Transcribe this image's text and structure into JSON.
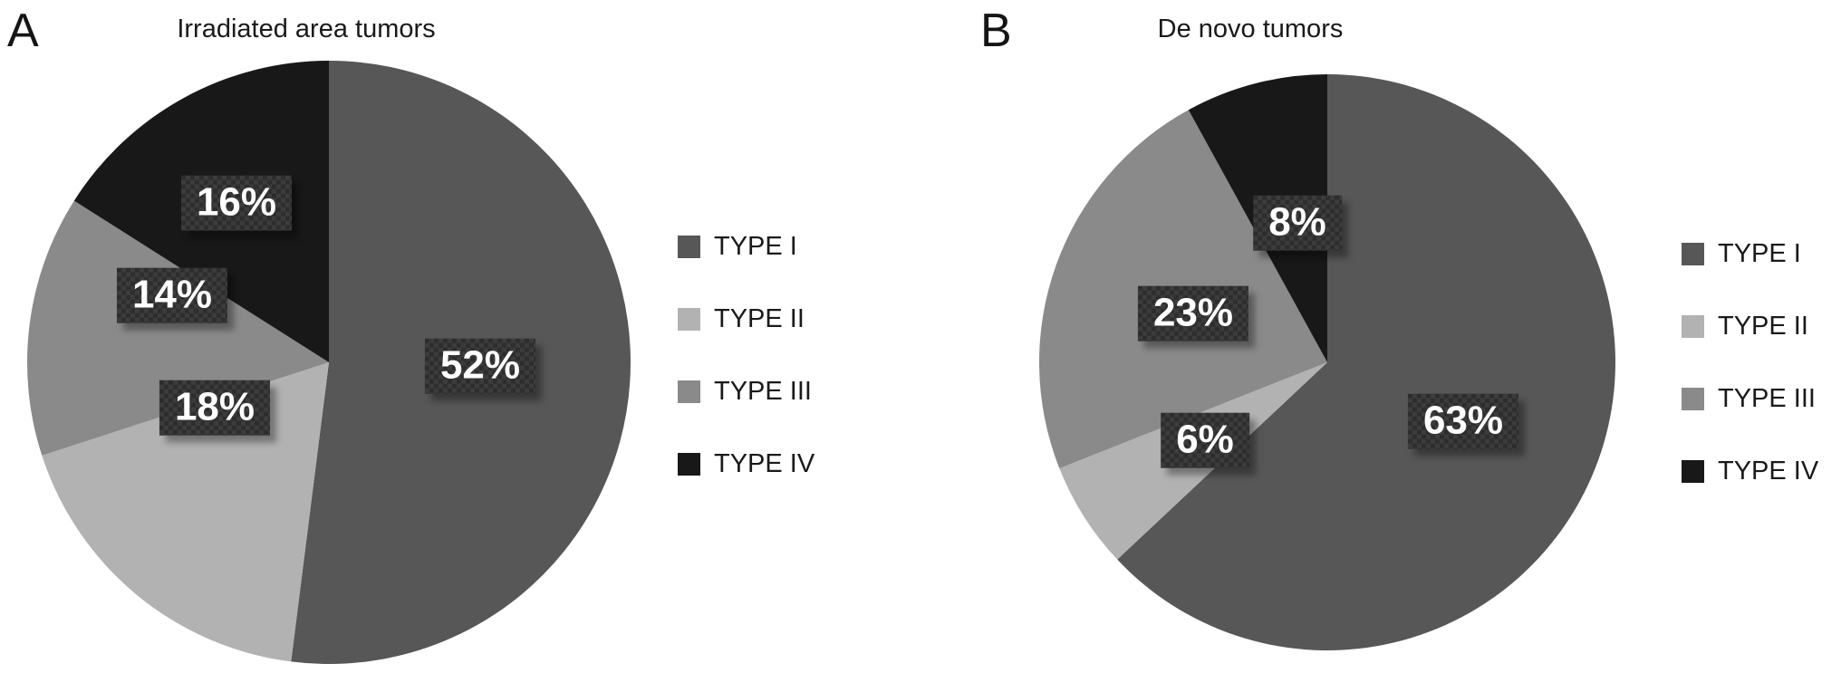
{
  "figure": {
    "background": "#ffffff",
    "panels": [
      {
        "panel_label": "A"
      },
      {
        "panel_label": "B"
      }
    ]
  },
  "chart_data": [
    {
      "type": "pie",
      "title": "Irradiated area tumors",
      "labels": [
        "TYPE I",
        "TYPE II",
        "TYPE III",
        "TYPE IV"
      ],
      "values": [
        52,
        18,
        14,
        16
      ],
      "value_labels": [
        "52%",
        "18%",
        "14%",
        "16%"
      ],
      "colors": [
        "#575757",
        "#b2b2b2",
        "#8a8a8a",
        "#181818"
      ],
      "unit": "percent",
      "start_angle_deg": 0,
      "direction": "clockwise",
      "legend_position": "right",
      "value_label_style": "dark box, white bold text, drop shadow"
    },
    {
      "type": "pie",
      "title": "De novo tumors",
      "labels": [
        "TYPE I",
        "TYPE II",
        "TYPE III",
        "TYPE IV"
      ],
      "values": [
        63,
        6,
        23,
        8
      ],
      "value_labels": [
        "63%",
        "6%",
        "23%",
        "8%"
      ],
      "colors": [
        "#575757",
        "#b2b2b2",
        "#8a8a8a",
        "#181818"
      ],
      "unit": "percent",
      "start_angle_deg": 0,
      "direction": "clockwise",
      "legend_position": "right",
      "value_label_style": "dark box, white bold text, drop shadow"
    }
  ],
  "styles": {
    "label_box_bg": "#2d2d2d",
    "label_text_color": "#ffffff",
    "title_color": "#1a1a1a",
    "legend_text_color": "#1a1a1a"
  }
}
